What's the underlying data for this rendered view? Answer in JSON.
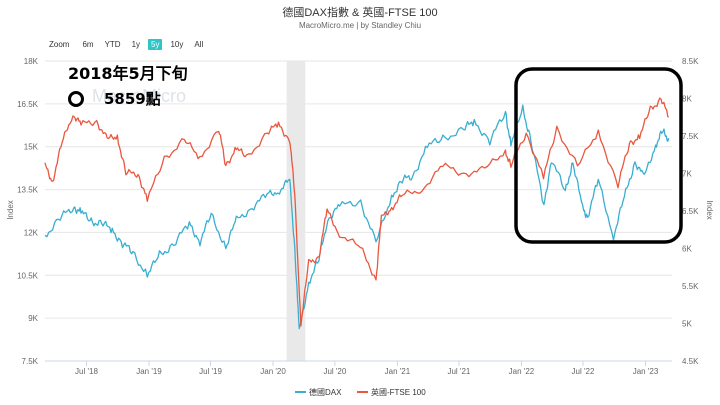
{
  "header": {
    "title": "德國DAX指數 & 英國-FTSE 100",
    "subtitle": "MacroMicro.me | by Standley Chiu"
  },
  "zoom": {
    "label": "Zoom",
    "buttons": [
      {
        "label": "6m",
        "active": false
      },
      {
        "label": "YTD",
        "active": false
      },
      {
        "label": "1y",
        "active": false
      },
      {
        "label": "5y",
        "active": true
      },
      {
        "label": "10y",
        "active": false
      },
      {
        "label": "All",
        "active": false
      }
    ]
  },
  "watermark": "MacroMicro",
  "annotation": {
    "line1": "2018年5月下旬",
    "line2": "5859點"
  },
  "chart_data": {
    "type": "line",
    "x_ticks": [
      "Jul '18",
      "Jan '19",
      "Jul '19",
      "Jan '20",
      "Jul '20",
      "Jan '21",
      "Jul '21",
      "Jan '22",
      "Jul '22",
      "Jan '23"
    ],
    "left_axis": {
      "title": "Index",
      "ticks": [
        "18K",
        "16.5K",
        "15K",
        "13.5K",
        "12K",
        "10.5K",
        "9K",
        "7.5K"
      ],
      "range": [
        7500,
        18000
      ]
    },
    "right_axis": {
      "title": "Index",
      "ticks": [
        "8.5K",
        "8K",
        "7.5K",
        "7K",
        "6.5K",
        "6K",
        "5.5K",
        "5K",
        "4.5K"
      ],
      "range": [
        4500,
        8500
      ]
    },
    "shaded_band": {
      "start": "2020-02",
      "end": "2020-04"
    },
    "series": [
      {
        "name": "德國DAX",
        "axis": "left",
        "color": "#3aaed0",
        "points": [
          [
            "2018-03-01",
            11900
          ],
          [
            "2018-04-15",
            12500
          ],
          [
            "2018-05-25",
            12900
          ],
          [
            "2018-06-15",
            12700
          ],
          [
            "2018-07-15",
            12400
          ],
          [
            "2018-08-15",
            12300
          ],
          [
            "2018-09-15",
            12100
          ],
          [
            "2018-10-15",
            11600
          ],
          [
            "2018-11-15",
            11300
          ],
          [
            "2018-12-27",
            10500
          ],
          [
            "2019-02-01",
            11200
          ],
          [
            "2019-03-15",
            11600
          ],
          [
            "2019-04-30",
            12300
          ],
          [
            "2019-05-31",
            11700
          ],
          [
            "2019-07-03",
            12600
          ],
          [
            "2019-08-15",
            11500
          ],
          [
            "2019-09-15",
            12400
          ],
          [
            "2019-10-31",
            12900
          ],
          [
            "2019-12-15",
            13300
          ],
          [
            "2020-01-20",
            13500
          ],
          [
            "2020-02-19",
            13800
          ],
          [
            "2020-03-05",
            11500
          ],
          [
            "2020-03-18",
            8500
          ],
          [
            "2020-04-15",
            10300
          ],
          [
            "2020-05-15",
            11000
          ],
          [
            "2020-06-10",
            12500
          ],
          [
            "2020-07-15",
            12900
          ],
          [
            "2020-09-15",
            13100
          ],
          [
            "2020-10-30",
            11600
          ],
          [
            "2020-12-15",
            13300
          ],
          [
            "2021-01-15",
            13800
          ],
          [
            "2021-02-15",
            14000
          ],
          [
            "2021-03-30",
            15000
          ],
          [
            "2021-05-15",
            15300
          ],
          [
            "2021-07-15",
            15600
          ],
          [
            "2021-08-15",
            15900
          ],
          [
            "2021-09-30",
            15200
          ],
          [
            "2021-11-15",
            16200
          ],
          [
            "2021-12-01",
            15100
          ],
          [
            "2022-01-05",
            16300
          ],
          [
            "2022-01-28",
            15300
          ],
          [
            "2022-03-08",
            12900
          ],
          [
            "2022-03-30",
            14600
          ],
          [
            "2022-05-10",
            13400
          ],
          [
            "2022-06-01",
            14500
          ],
          [
            "2022-06-30",
            12800
          ],
          [
            "2022-07-15",
            12600
          ],
          [
            "2022-08-15",
            13800
          ],
          [
            "2022-09-29",
            11900
          ],
          [
            "2022-10-31",
            13200
          ],
          [
            "2022-12-01",
            14500
          ],
          [
            "2022-12-28",
            13900
          ],
          [
            "2023-01-31",
            15100
          ],
          [
            "2023-02-20",
            15500
          ],
          [
            "2023-03-10",
            15300
          ]
        ]
      },
      {
        "name": "英國-FTSE 100",
        "axis": "right",
        "color": "#e9573f",
        "points": [
          [
            "2018-03-01",
            7100
          ],
          [
            "2018-03-23",
            6900
          ],
          [
            "2018-04-20",
            7400
          ],
          [
            "2018-05-22",
            7800
          ],
          [
            "2018-06-15",
            7650
          ],
          [
            "2018-07-31",
            7700
          ],
          [
            "2018-08-31",
            7450
          ],
          [
            "2018-09-30",
            7500
          ],
          [
            "2018-10-25",
            7000
          ],
          [
            "2018-11-30",
            7000
          ],
          [
            "2018-12-27",
            6650
          ],
          [
            "2019-02-15",
            7200
          ],
          [
            "2019-04-15",
            7450
          ],
          [
            "2019-05-31",
            7200
          ],
          [
            "2019-07-25",
            7600
          ],
          [
            "2019-08-15",
            7100
          ],
          [
            "2019-09-15",
            7350
          ],
          [
            "2019-10-15",
            7200
          ],
          [
            "2019-12-15",
            7550
          ],
          [
            "2020-01-17",
            7650
          ],
          [
            "2020-02-20",
            7450
          ],
          [
            "2020-03-05",
            6700
          ],
          [
            "2020-03-23",
            5000
          ],
          [
            "2020-04-15",
            5800
          ],
          [
            "2020-05-15",
            5900
          ],
          [
            "2020-06-08",
            6500
          ],
          [
            "2020-07-15",
            6200
          ],
          [
            "2020-09-15",
            6000
          ],
          [
            "2020-10-30",
            5600
          ],
          [
            "2020-11-15",
            6400
          ],
          [
            "2020-12-15",
            6550
          ],
          [
            "2021-01-15",
            6700
          ],
          [
            "2021-03-15",
            6800
          ],
          [
            "2021-05-15",
            7100
          ],
          [
            "2021-07-15",
            7000
          ],
          [
            "2021-09-15",
            7050
          ],
          [
            "2021-11-15",
            7300
          ],
          [
            "2021-12-01",
            7100
          ],
          [
            "2022-01-15",
            7550
          ],
          [
            "2022-03-07",
            6950
          ],
          [
            "2022-04-15",
            7600
          ],
          [
            "2022-06-15",
            7100
          ],
          [
            "2022-08-15",
            7550
          ],
          [
            "2022-10-12",
            6850
          ],
          [
            "2022-11-15",
            7400
          ],
          [
            "2022-12-15",
            7500
          ],
          [
            "2023-01-15",
            7850
          ],
          [
            "2023-02-16",
            8000
          ],
          [
            "2023-03-10",
            7750
          ]
        ]
      }
    ],
    "legend": [
      "德國DAX",
      "英國-FTSE 100"
    ]
  }
}
